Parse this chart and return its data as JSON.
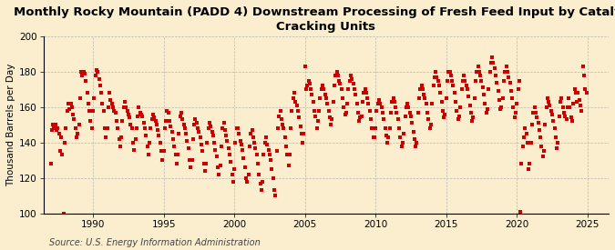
{
  "title": "Monthly Rocky Mountain (PADD 4) Downstream Processing of Fresh Feed Input by Catalytic\nCracking Units",
  "ylabel": "Thousand Barrels per Day",
  "source": "Source: U.S. Energy Information Administration",
  "bg_color": "#faeece",
  "marker_color": "#cc0000",
  "xlim": [
    1986.5,
    2026.5
  ],
  "ylim": [
    100,
    200
  ],
  "yticks": [
    100,
    120,
    140,
    160,
    180,
    200
  ],
  "xticks": [
    1990,
    1995,
    2000,
    2005,
    2010,
    2015,
    2020,
    2025
  ],
  "title_fontsize": 9.5,
  "ylabel_fontsize": 7.5,
  "source_fontsize": 7.0,
  "data": {
    "1987": [
      128,
      147,
      150,
      148,
      150,
      147,
      148,
      145,
      135,
      143,
      133,
      100
    ],
    "1988": [
      140,
      148,
      158,
      162,
      159,
      162,
      160,
      156,
      153,
      148,
      143,
      145
    ],
    "1989": [
      150,
      165,
      180,
      178,
      180,
      179,
      175,
      168,
      162,
      158,
      152,
      148
    ],
    "1990": [
      158,
      165,
      178,
      181,
      180,
      176,
      172,
      168,
      162,
      158,
      148,
      143
    ],
    "1991": [
      148,
      160,
      168,
      164,
      162,
      160,
      158,
      157,
      152,
      148,
      142,
      138
    ],
    "1992": [
      143,
      152,
      160,
      163,
      160,
      158,
      156,
      154,
      150,
      148,
      140,
      136
    ],
    "1993": [
      142,
      148,
      155,
      160,
      157,
      156,
      155,
      151,
      148,
      144,
      138,
      133
    ],
    "1994": [
      140,
      148,
      153,
      156,
      154,
      152,
      150,
      147,
      144,
      140,
      135,
      130
    ],
    "1995": [
      135,
      148,
      152,
      158,
      157,
      152,
      149,
      146,
      142,
      138,
      133,
      128
    ],
    "1996": [
      133,
      145,
      155,
      157,
      153,
      150,
      148,
      145,
      141,
      137,
      130,
      126
    ],
    "1997": [
      130,
      142,
      150,
      153,
      151,
      148,
      146,
      143,
      139,
      135,
      128,
      124
    ],
    "1998": [
      128,
      140,
      148,
      151,
      149,
      146,
      144,
      140,
      136,
      132,
      126,
      122
    ],
    "1999": [
      127,
      138,
      148,
      151,
      147,
      144,
      141,
      137,
      133,
      129,
      122,
      118
    ],
    "2000": [
      125,
      140,
      148,
      148,
      145,
      141,
      139,
      136,
      131,
      126,
      120,
      118
    ],
    "2001": [
      122,
      138,
      145,
      147,
      143,
      140,
      137,
      133,
      128,
      122,
      117,
      113
    ],
    "2002": [
      118,
      133,
      140,
      143,
      139,
      136,
      133,
      130,
      125,
      120,
      113,
      110
    ],
    "2003": [
      135,
      148,
      155,
      158,
      153,
      150,
      148,
      143,
      138,
      133,
      127,
      133
    ],
    "2004": [
      148,
      158,
      165,
      168,
      163,
      161,
      158,
      154,
      149,
      145,
      140,
      145
    ],
    "2005": [
      183,
      170,
      172,
      175,
      173,
      170,
      167,
      163,
      158,
      155,
      148,
      152
    ],
    "2006": [
      158,
      165,
      170,
      172,
      170,
      167,
      165,
      162,
      158,
      154,
      150,
      153
    ],
    "2007": [
      163,
      172,
      178,
      180,
      178,
      175,
      173,
      170,
      165,
      160,
      156,
      157
    ],
    "2008": [
      162,
      170,
      175,
      178,
      176,
      173,
      170,
      167,
      162,
      157,
      152,
      154
    ],
    "2009": [
      155,
      163,
      168,
      170,
      168,
      165,
      162,
      158,
      153,
      148,
      143,
      143
    ],
    "2010": [
      148,
      158,
      162,
      164,
      162,
      160,
      157,
      153,
      148,
      144,
      140,
      143
    ],
    "2011": [
      148,
      157,
      163,
      165,
      163,
      160,
      157,
      153,
      148,
      143,
      138,
      140
    ],
    "2012": [
      145,
      155,
      160,
      162,
      160,
      157,
      155,
      151,
      146,
      142,
      138,
      140
    ],
    "2013": [
      157,
      165,
      170,
      172,
      170,
      167,
      165,
      162,
      157,
      153,
      148,
      150
    ],
    "2014": [
      162,
      172,
      177,
      180,
      177,
      175,
      172,
      168,
      163,
      158,
      154,
      156
    ],
    "2015": [
      165,
      175,
      180,
      180,
      178,
      175,
      172,
      168,
      163,
      158,
      153,
      155
    ],
    "2016": [
      160,
      170,
      175,
      178,
      175,
      172,
      170,
      166,
      161,
      157,
      152,
      154
    ],
    "2017": [
      165,
      175,
      180,
      183,
      180,
      178,
      175,
      171,
      167,
      162,
      157,
      159
    ],
    "2018": [
      170,
      180,
      185,
      188,
      185,
      182,
      178,
      174,
      169,
      164,
      159,
      160
    ],
    "2019": [
      165,
      175,
      180,
      183,
      180,
      177,
      174,
      169,
      165,
      160,
      154,
      157
    ],
    "2020": [
      162,
      170,
      175,
      101,
      128,
      138,
      143,
      148,
      145,
      140,
      125,
      128
    ],
    "2021": [
      140,
      150,
      157,
      160,
      157,
      154,
      151,
      147,
      143,
      138,
      132,
      135
    ],
    "2022": [
      150,
      160,
      165,
      163,
      161,
      158,
      156,
      152,
      148,
      143,
      137,
      140
    ],
    "2023": [
      155,
      163,
      165,
      160,
      157,
      155,
      153,
      160,
      165,
      160,
      154,
      152
    ],
    "2024": [
      162,
      170,
      168,
      163,
      168,
      164,
      161,
      158,
      183,
      178,
      170,
      168
    ]
  }
}
